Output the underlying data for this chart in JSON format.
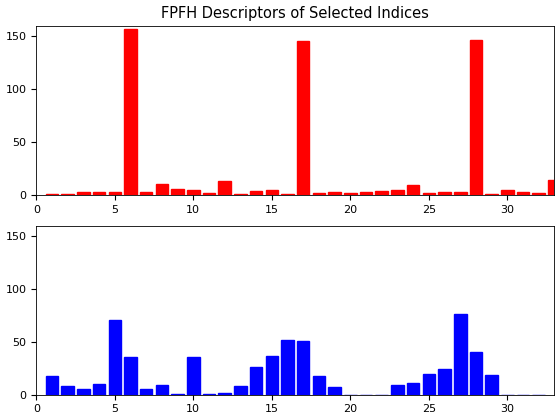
{
  "title": "FPFH Descriptors of Selected Indices",
  "red_x": [
    1,
    2,
    3,
    4,
    5,
    6,
    7,
    8,
    9,
    10,
    11,
    12,
    13,
    14,
    15,
    16,
    17,
    18,
    19,
    20,
    21,
    22,
    23,
    24,
    25,
    26,
    27,
    28,
    29,
    30,
    31,
    32,
    33
  ],
  "red_values": [
    0.5,
    1,
    3,
    3,
    3,
    157,
    3,
    10,
    6,
    5,
    2,
    13,
    1,
    4,
    5,
    1,
    146,
    2,
    3,
    2,
    3,
    4,
    5,
    9,
    2,
    3,
    3,
    147,
    1,
    5,
    3,
    2,
    14
  ],
  "blue_x": [
    1,
    2,
    3,
    4,
    5,
    6,
    7,
    8,
    9,
    10,
    11,
    12,
    13,
    14,
    15,
    16,
    17,
    18,
    19,
    20,
    21,
    22,
    23,
    24,
    25,
    26,
    27,
    28,
    29,
    30,
    31,
    32
  ],
  "blue_values": [
    18,
    8,
    5,
    10,
    71,
    36,
    5,
    9,
    1,
    36,
    1,
    2,
    8,
    26,
    37,
    52,
    51,
    18,
    7,
    0,
    0,
    0,
    9,
    11,
    20,
    24,
    76,
    40,
    19,
    0,
    0,
    0
  ],
  "red_color": "#FF0000",
  "blue_color": "#0000FF",
  "xlim": [
    0,
    33
  ],
  "ylim": [
    0,
    160
  ],
  "yticks": [
    0,
    50,
    100,
    150
  ],
  "xticks": [
    0,
    5,
    10,
    15,
    20,
    25,
    30
  ],
  "bg_color": "#FFFFFF",
  "bar_width": 0.8
}
